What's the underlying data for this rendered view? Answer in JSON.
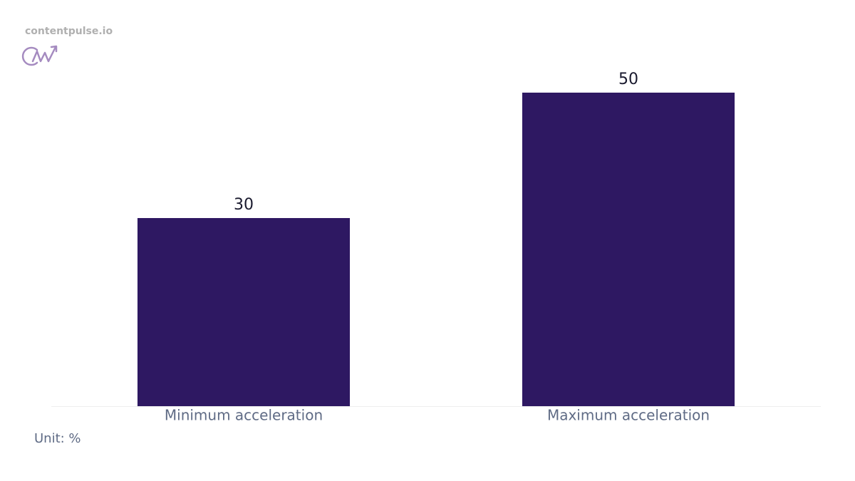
{
  "brand": "contentpulse.io",
  "chart_data": {
    "type": "bar",
    "categories": [
      "Minimum acceleration",
      "Maximum acceleration"
    ],
    "values": [
      30,
      50
    ],
    "color": "#2e1862",
    "ylim": [
      0,
      50
    ],
    "unit_note": "Unit: %"
  }
}
